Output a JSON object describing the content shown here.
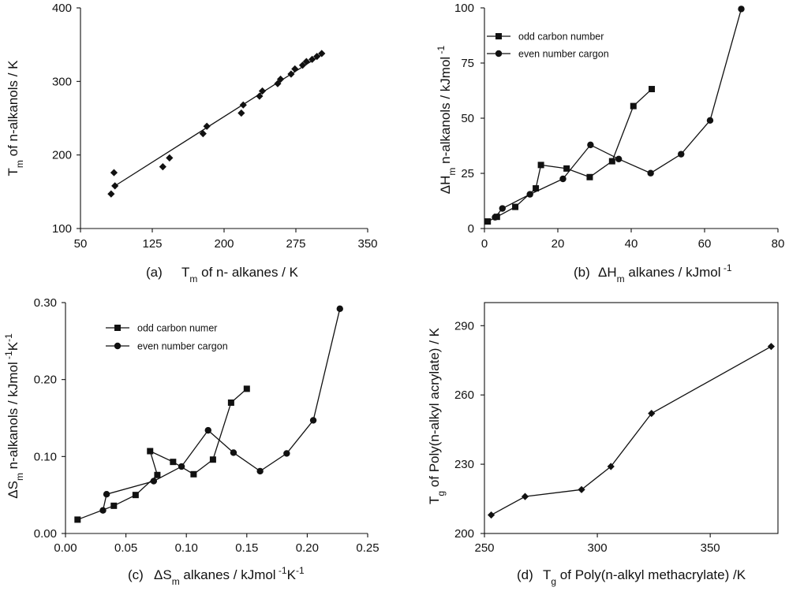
{
  "chart_data": [
    {
      "id": "a",
      "type": "scatter",
      "panel_label": "(a)",
      "xlabel_main": "T",
      "xlabel_sub": "m",
      "xlabel_rest": "of n- alkanes / K",
      "ylabel_main": "T",
      "ylabel_sub": "m",
      "ylabel_rest": "of n-alkanols / K",
      "xlim": [
        50,
        350
      ],
      "ylim": [
        100,
        400
      ],
      "xticks": [
        "50",
        "125",
        "200",
        "275",
        "350"
      ],
      "yticks": [
        "100",
        "200",
        "300",
        "400"
      ],
      "marker": "diamond",
      "points": [
        [
          82,
          147
        ],
        [
          85,
          176
        ],
        [
          86,
          158
        ],
        [
          136,
          184
        ],
        [
          143,
          196
        ],
        [
          178,
          229
        ],
        [
          182,
          239
        ],
        [
          218,
          257
        ],
        [
          220,
          268
        ],
        [
          237,
          280
        ],
        [
          240,
          287
        ],
        [
          256,
          297
        ],
        [
          259,
          303
        ],
        [
          270,
          310
        ],
        [
          274,
          317
        ],
        [
          282,
          322
        ],
        [
          286,
          327
        ],
        [
          292,
          330
        ],
        [
          297,
          334
        ],
        [
          302,
          338
        ]
      ],
      "fit_line": [
        [
          86,
          158
        ],
        [
          304,
          338
        ]
      ]
    },
    {
      "id": "b",
      "type": "line",
      "panel_label": "(b)",
      "xlabel_main": "ΔH",
      "xlabel_sub": "m",
      "xlabel_rest": "alkanes / kJmol",
      "xlabel_sup": "-1",
      "ylabel_main": "ΔH",
      "ylabel_sub": "m",
      "ylabel_rest": "n-alkanols / kJmol",
      "ylabel_sup": "-1",
      "xlim": [
        0,
        80
      ],
      "ylim": [
        0,
        100
      ],
      "xticks": [
        "0",
        "20",
        "40",
        "60",
        "80"
      ],
      "yticks": [
        "0",
        "25",
        "50",
        "75",
        "100"
      ],
      "series": [
        {
          "name": "odd carbon number",
          "marker": "square",
          "points": [
            [
              0.9,
              3.2
            ],
            [
              3.4,
              5.3
            ],
            [
              8.4,
              9.8
            ],
            [
              14.0,
              18.2
            ],
            [
              15.4,
              28.8
            ],
            [
              22.4,
              27.2
            ],
            [
              28.7,
              23.3
            ],
            [
              34.8,
              30.5
            ],
            [
              40.6,
              55.5
            ],
            [
              45.6,
              63.2
            ]
          ]
        },
        {
          "name": "even number cargon",
          "marker": "circle",
          "points": [
            [
              2.9,
              5.1
            ],
            [
              4.9,
              9.1
            ],
            [
              12.4,
              15.5
            ],
            [
              21.4,
              22.5
            ],
            [
              28.9,
              37.9
            ],
            [
              36.6,
              31.5
            ],
            [
              45.3,
              25.1
            ],
            [
              53.6,
              33.7
            ],
            [
              61.5,
              49.0
            ],
            [
              70.0,
              99.5
            ]
          ]
        }
      ]
    },
    {
      "id": "c",
      "type": "line",
      "panel_label": "(c)",
      "xlabel_main": "ΔS",
      "xlabel_sub": "m",
      "xlabel_rest": "alkanes / kJmol",
      "xlabel_sup": "-1",
      "xlabel_tail": "K",
      "xlabel_sup2": "-1",
      "ylabel_main": "ΔS",
      "ylabel_sub": "m",
      "ylabel_rest": "n-alkanols / kJmol",
      "ylabel_sup": "-1",
      "ylabel_tail": "K",
      "ylabel_sup2": "-1",
      "xlim": [
        0,
        0.25
      ],
      "ylim": [
        0,
        0.3
      ],
      "xticks": [
        "0.00",
        "0.05",
        "0.10",
        "0.15",
        "0.20",
        "0.25"
      ],
      "yticks": [
        "0.00",
        "0.10",
        "0.20",
        "0.30"
      ],
      "series": [
        {
          "name": "odd carbon numer",
          "marker": "square",
          "points": [
            [
              0.01,
              0.018
            ],
            [
              0.04,
              0.036
            ],
            [
              0.058,
              0.05
            ],
            [
              0.076,
              0.076
            ],
            [
              0.07,
              0.107
            ],
            [
              0.089,
              0.093
            ],
            [
              0.106,
              0.077
            ],
            [
              0.122,
              0.096
            ],
            [
              0.137,
              0.17
            ],
            [
              0.15,
              0.188
            ]
          ]
        },
        {
          "name": "even number cargon",
          "marker": "circle",
          "points": [
            [
              0.031,
              0.03
            ],
            [
              0.034,
              0.051
            ],
            [
              0.073,
              0.068
            ],
            [
              0.096,
              0.087
            ],
            [
              0.118,
              0.134
            ],
            [
              0.139,
              0.105
            ],
            [
              0.161,
              0.081
            ],
            [
              0.183,
              0.104
            ],
            [
              0.205,
              0.147
            ],
            [
              0.227,
              0.292
            ]
          ]
        }
      ]
    },
    {
      "id": "d",
      "type": "line",
      "panel_label": "(d)",
      "xlabel_main": "T",
      "xlabel_sub": "g",
      "xlabel_rest": "of Poly(n-alkyl methacrylate) /K",
      "ylabel_main": "T",
      "ylabel_sub": "g",
      "ylabel_rest": "of Poly(n-alkyl acrylate) / K",
      "xlim": [
        250,
        380
      ],
      "ylim": [
        200,
        300
      ],
      "xticks": [
        "250",
        "300",
        "350"
      ],
      "yticks": [
        "200",
        "230",
        "260",
        "290"
      ],
      "series": [
        {
          "name": "Tg",
          "marker": "diamond",
          "points": [
            [
              253,
              208
            ],
            [
              268,
              216
            ],
            [
              293,
              219
            ],
            [
              306,
              229
            ],
            [
              324,
              252
            ],
            [
              377,
              281
            ]
          ]
        }
      ]
    }
  ]
}
